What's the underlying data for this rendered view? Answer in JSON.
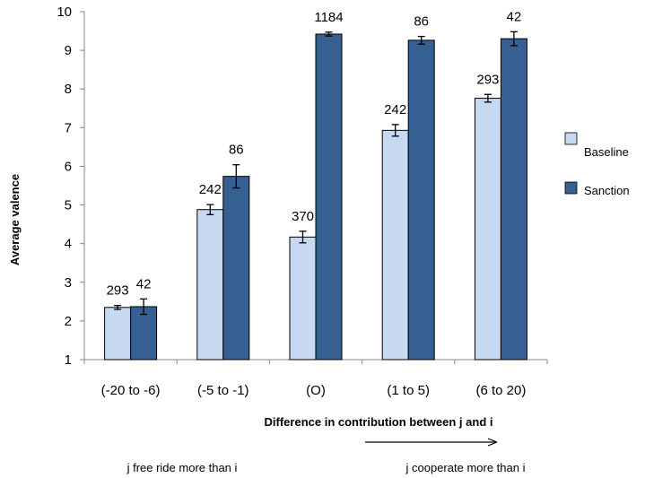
{
  "chart_data": {
    "type": "bar",
    "categories": [
      "(-20 to -6)",
      "(-5 to -1)",
      "(O)",
      "(1 to 5)",
      "(6 to 20)"
    ],
    "series": [
      {
        "name": "Baseline",
        "color": "#c6d9f1",
        "values": [
          2.35,
          4.88,
          4.17,
          6.93,
          7.76
        ],
        "error": [
          0.05,
          0.13,
          0.15,
          0.15,
          0.1
        ],
        "labels": [
          "293",
          "242",
          "370",
          "242",
          "293"
        ]
      },
      {
        "name": "Sanction",
        "color": "#366092",
        "values": [
          2.37,
          5.74,
          9.42,
          9.26,
          9.3
        ],
        "error": [
          0.2,
          0.3,
          0.05,
          0.1,
          0.18
        ],
        "labels": [
          "42",
          "86",
          "1184",
          "86",
          "42"
        ]
      }
    ],
    "title": "",
    "xlabel": "Difference in contribution between j and i",
    "ylabel": "Average valence",
    "ylim": [
      1,
      10
    ],
    "yticks": [
      1,
      2,
      3,
      4,
      5,
      6,
      7,
      8,
      9,
      10
    ],
    "grid": false,
    "legend_position": "right",
    "annotations": {
      "left": "j free ride  more than i",
      "right": "j cooperate more than i"
    }
  }
}
